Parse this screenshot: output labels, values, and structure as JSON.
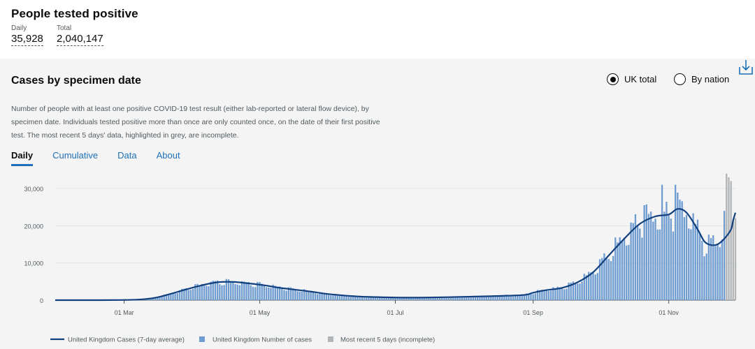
{
  "page": {
    "title": "People tested positive"
  },
  "metrics": [
    {
      "label": "Daily",
      "value": "35,928"
    },
    {
      "label": "Total",
      "value": "2,040,147"
    }
  ],
  "card": {
    "title": "Cases by specimen date",
    "description": "Number of people with at least one positive COVID-19 test result (either lab-reported or lateral flow device), by specimen date. Individuals tested positive more than once are only counted once, on the date of their first positive test. The most recent 5 days' data, highlighted in grey, are incomplete.",
    "radios": [
      {
        "label": "UK total",
        "selected": true
      },
      {
        "label": "By nation",
        "selected": false
      }
    ],
    "tabs": [
      {
        "label": "Daily",
        "active": true
      },
      {
        "label": "Cumulative",
        "active": false
      },
      {
        "label": "Data",
        "active": false
      },
      {
        "label": "About",
        "active": false
      }
    ],
    "download_icon": "download-icon"
  },
  "colors": {
    "bar": "#6e9bd0",
    "line": "#12407f",
    "incomplete": "#b1b4b6",
    "link": "#1d70b8"
  },
  "chart_data": {
    "type": "bar",
    "x_range": [
      "2020-01-30",
      "2020-12-01"
    ],
    "x_ticks": [
      {
        "date": "2020-03-01",
        "label": "01 Mar"
      },
      {
        "date": "2020-05-01",
        "label": "01 May"
      },
      {
        "date": "2020-07-01",
        "label": "01 Jul"
      },
      {
        "date": "2020-09-01",
        "label": "01 Sep"
      },
      {
        "date": "2020-11-01",
        "label": "01 Nov"
      }
    ],
    "ylim": [
      0,
      34000
    ],
    "y_ticks": [
      {
        "value": 0,
        "label": "0"
      },
      {
        "value": 10000,
        "label": "10,000"
      },
      {
        "value": 20000,
        "label": "20,000"
      },
      {
        "value": 30000,
        "label": "30,000"
      }
    ],
    "grid": true,
    "legend_position": "bottom",
    "series": [
      {
        "name": "United Kingdom Cases (7-day average)",
        "type": "line",
        "points": [
          [
            "2020-01-30",
            0
          ],
          [
            "2020-02-20",
            5
          ],
          [
            "2020-03-01",
            50
          ],
          [
            "2020-03-08",
            180
          ],
          [
            "2020-03-15",
            650
          ],
          [
            "2020-03-22",
            1700
          ],
          [
            "2020-03-29",
            2900
          ],
          [
            "2020-04-05",
            4000
          ],
          [
            "2020-04-12",
            4800
          ],
          [
            "2020-04-19",
            4900
          ],
          [
            "2020-04-26",
            4500
          ],
          [
            "2020-05-03",
            4000
          ],
          [
            "2020-05-10",
            3300
          ],
          [
            "2020-05-17",
            2800
          ],
          [
            "2020-05-24",
            2300
          ],
          [
            "2020-05-31",
            1700
          ],
          [
            "2020-06-07",
            1300
          ],
          [
            "2020-06-14",
            1000
          ],
          [
            "2020-06-21",
            850
          ],
          [
            "2020-07-01",
            700
          ],
          [
            "2020-07-15",
            700
          ],
          [
            "2020-08-01",
            900
          ],
          [
            "2020-08-15",
            1100
          ],
          [
            "2020-08-28",
            1400
          ],
          [
            "2020-09-01",
            2000
          ],
          [
            "2020-09-07",
            2700
          ],
          [
            "2020-09-14",
            3300
          ],
          [
            "2020-09-21",
            4800
          ],
          [
            "2020-09-28",
            7500
          ],
          [
            "2020-10-05",
            12000
          ],
          [
            "2020-10-12",
            16500
          ],
          [
            "2020-10-19",
            20500
          ],
          [
            "2020-10-26",
            22500
          ],
          [
            "2020-11-01",
            23000
          ],
          [
            "2020-11-05",
            24500
          ],
          [
            "2020-11-09",
            23500
          ],
          [
            "2020-11-14",
            19000
          ],
          [
            "2020-11-17",
            15800
          ],
          [
            "2020-11-20",
            14800
          ],
          [
            "2020-11-23",
            15000
          ],
          [
            "2020-11-26",
            16500
          ],
          [
            "2020-11-29",
            19000
          ],
          [
            "2020-11-30",
            21500
          ],
          [
            "2020-12-01",
            23500
          ]
        ]
      },
      {
        "name": "United Kingdom Number of cases",
        "type": "bar",
        "start": "2020-01-30",
        "end": "2020-11-26",
        "profile": [
          [
            "2020-01-30",
            0
          ],
          [
            "2020-02-20",
            8
          ],
          [
            "2020-03-01",
            60
          ],
          [
            "2020-03-08",
            200
          ],
          [
            "2020-03-15",
            700
          ],
          [
            "2020-03-22",
            1800
          ],
          [
            "2020-03-29",
            3100
          ],
          [
            "2020-04-05",
            4300
          ],
          [
            "2020-04-12",
            5000
          ],
          [
            "2020-04-19",
            5000
          ],
          [
            "2020-04-26",
            4600
          ],
          [
            "2020-05-03",
            4200
          ],
          [
            "2020-05-10",
            3500
          ],
          [
            "2020-05-17",
            2900
          ],
          [
            "2020-05-24",
            2400
          ],
          [
            "2020-05-31",
            1700
          ],
          [
            "2020-06-07",
            1300
          ],
          [
            "2020-06-14",
            1000
          ],
          [
            "2020-06-21",
            850
          ],
          [
            "2020-07-01",
            750
          ],
          [
            "2020-07-15",
            750
          ],
          [
            "2020-08-01",
            950
          ],
          [
            "2020-08-15",
            1150
          ],
          [
            "2020-08-28",
            1450
          ],
          [
            "2020-09-01",
            2100
          ],
          [
            "2020-09-07",
            2900
          ],
          [
            "2020-09-14",
            3500
          ],
          [
            "2020-09-21",
            5000
          ],
          [
            "2020-09-28",
            8000
          ],
          [
            "2020-10-05",
            12500
          ],
          [
            "2020-10-12",
            17500
          ],
          [
            "2020-10-19",
            21500
          ],
          [
            "2020-10-26",
            23000
          ],
          [
            "2020-11-01",
            23500
          ],
          [
            "2020-11-05",
            25000
          ],
          [
            "2020-11-09",
            24500
          ],
          [
            "2020-11-14",
            19500
          ],
          [
            "2020-11-17",
            15500
          ],
          [
            "2020-11-20",
            15500
          ],
          [
            "2020-11-23",
            16500
          ],
          [
            "2020-11-26",
            20000
          ]
        ],
        "peaks": [
          [
            "2020-10-29",
            31000
          ],
          [
            "2020-11-04",
            31000
          ],
          [
            "2020-11-06",
            27000
          ],
          [
            "2020-10-21",
            25500
          ],
          [
            "2020-11-26",
            24000
          ]
        ]
      },
      {
        "name": "Most recent 5 days (incomplete)",
        "type": "bar",
        "values": [
          [
            "2020-11-27",
            34000
          ],
          [
            "2020-11-28",
            33000
          ],
          [
            "2020-11-29",
            32000
          ],
          [
            "2020-11-30",
            21500
          ],
          [
            "2020-12-01",
            22000
          ]
        ]
      }
    ]
  }
}
